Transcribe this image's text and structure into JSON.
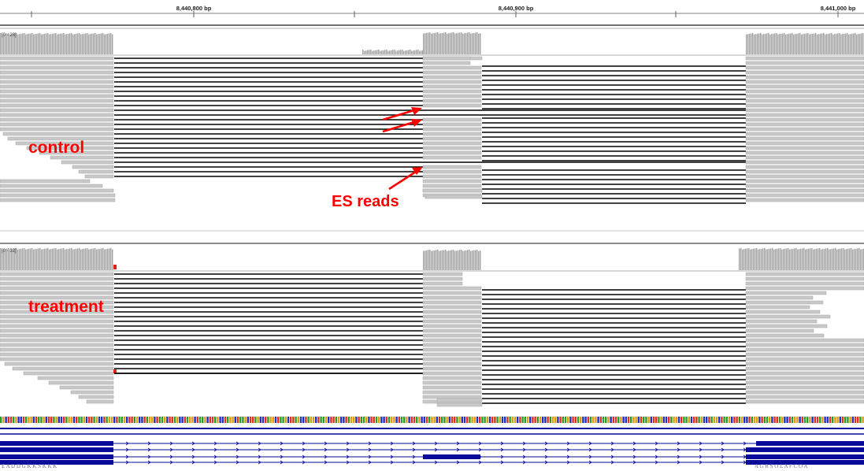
{
  "ruler": {
    "ticks": [
      "8,440,800 bp",
      "8,440,900 bp",
      "8,441,000 bp"
    ]
  },
  "tracks": [
    {
      "name": "control",
      "range": "[0 - 28]"
    },
    {
      "name": "treatment",
      "range": "[0 - 32]"
    }
  ],
  "annotations": {
    "control": "control",
    "treatment": "treatment",
    "es_reads": "ES reads"
  },
  "colors": {
    "annotation": "#ff0000",
    "read": "#c8c8c8",
    "junction": "#000000",
    "gene": "#0a0a9a",
    "mismatch": "#e0201a"
  },
  "sequence": {
    "left_aa": "E A D D G K K S K K K",
    "right_aa": "A G R S O L A F C O A"
  }
}
